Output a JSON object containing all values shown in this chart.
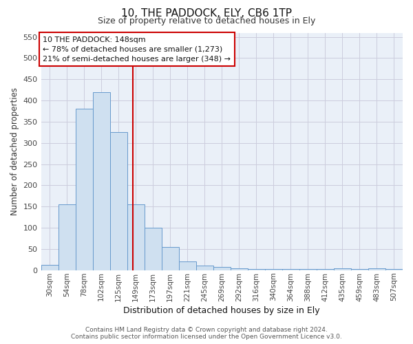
{
  "title": "10, THE PADDOCK, ELY, CB6 1TP",
  "subtitle": "Size of property relative to detached houses in Ely",
  "xlabel": "Distribution of detached houses by size in Ely",
  "ylabel": "Number of detached properties",
  "bar_color": "#cfe0f0",
  "bar_edge_color": "#6699cc",
  "categories": [
    "30sqm",
    "54sqm",
    "78sqm",
    "102sqm",
    "125sqm",
    "149sqm",
    "173sqm",
    "197sqm",
    "221sqm",
    "245sqm",
    "269sqm",
    "292sqm",
    "316sqm",
    "340sqm",
    "364sqm",
    "388sqm",
    "412sqm",
    "435sqm",
    "459sqm",
    "483sqm",
    "507sqm"
  ],
  "values": [
    12,
    155,
    380,
    420,
    325,
    155,
    100,
    55,
    20,
    10,
    8,
    5,
    3,
    3,
    3,
    3,
    3,
    5,
    3,
    5,
    3
  ],
  "ylim": [
    0,
    560
  ],
  "yticks": [
    0,
    50,
    100,
    150,
    200,
    250,
    300,
    350,
    400,
    450,
    500,
    550
  ],
  "property_label": "10 THE PADDOCK: 148sqm",
  "annotation_line1": "← 78% of detached houses are smaller (1,273)",
  "annotation_line2": "21% of semi-detached houses are larger (348) →",
  "red_line_x": 4.83,
  "footer_line1": "Contains HM Land Registry data © Crown copyright and database right 2024.",
  "footer_line2": "Contains public sector information licensed under the Open Government Licence v3.0.",
  "bg_color": "#ffffff",
  "ax_bg_color": "#eaf0f8",
  "grid_color": "#ccccdd",
  "title_fontsize": 11,
  "subtitle_fontsize": 9,
  "xlabel_fontsize": 9,
  "ylabel_fontsize": 8.5,
  "tick_fontsize": 7.5,
  "annot_fontsize": 8,
  "footer_fontsize": 6.5
}
